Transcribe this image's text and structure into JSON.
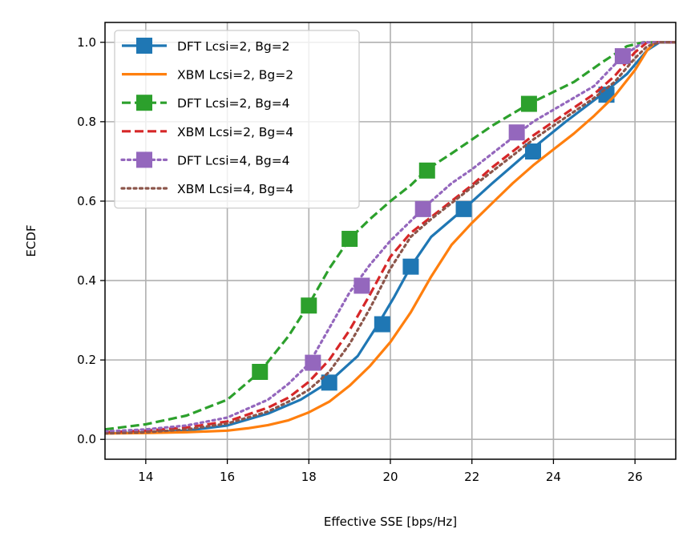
{
  "chart_data": {
    "type": "line",
    "title": "",
    "xlabel": "Effective SSE [bps/Hz]",
    "ylabel": "ECDF",
    "xlim": [
      13,
      27
    ],
    "ylim": [
      -0.05,
      1.05
    ],
    "xticks": [
      14,
      16,
      18,
      20,
      22,
      24,
      26
    ],
    "xtick_labels": [
      "14",
      "16",
      "18",
      "20",
      "22",
      "24",
      "26"
    ],
    "yticks": [
      0.0,
      0.2,
      0.4,
      0.6,
      0.8,
      1.0
    ],
    "ytick_labels": [
      "0.0",
      "0.2",
      "0.4",
      "0.6",
      "0.8",
      "1.0"
    ],
    "grid": true,
    "legend_position": "top-left",
    "series": [
      {
        "name": "DFT Lcsi=2, Bg=2",
        "color": "#1f77b4",
        "line": "solid",
        "marker": "square",
        "x": [
          13,
          14,
          15,
          16,
          17,
          17.8,
          18.5,
          19.2,
          19.7,
          20.1,
          20.5,
          21.0,
          21.8,
          22.5,
          23.4,
          24.3,
          25.2,
          25.8,
          26.3,
          26.6,
          27
        ],
        "y": [
          0.015,
          0.018,
          0.022,
          0.035,
          0.065,
          0.1,
          0.145,
          0.21,
          0.29,
          0.36,
          0.435,
          0.51,
          0.58,
          0.645,
          0.725,
          0.8,
          0.87,
          0.92,
          0.98,
          1.0,
          1.0
        ],
        "marker_x": [
          18.5,
          19.8,
          20.5,
          21.8,
          23.5,
          25.3
        ],
        "marker_y": [
          0.143,
          0.29,
          0.435,
          0.58,
          0.725,
          0.868
        ]
      },
      {
        "name": "XBM Lcsi=2, Bg=2",
        "color": "#ff7f0e",
        "line": "solid",
        "marker": "none",
        "x": [
          13,
          14,
          15,
          16,
          16.5,
          17,
          17.5,
          18,
          18.5,
          19,
          19.5,
          20,
          20.5,
          21,
          21.5,
          22,
          22.5,
          23,
          23.5,
          24,
          24.5,
          25,
          25.5,
          26,
          26.3,
          26.5,
          27
        ],
        "y": [
          0.015,
          0.016,
          0.018,
          0.022,
          0.028,
          0.036,
          0.048,
          0.068,
          0.095,
          0.135,
          0.185,
          0.245,
          0.32,
          0.41,
          0.49,
          0.545,
          0.595,
          0.645,
          0.69,
          0.73,
          0.77,
          0.815,
          0.865,
          0.93,
          0.98,
          1.0,
          1.0
        ]
      },
      {
        "name": "DFT Lcsi=2, Bg=4",
        "color": "#2ca02c",
        "line": "dashed",
        "marker": "square",
        "x": [
          13,
          14,
          15,
          16,
          16.8,
          17.5,
          18.0,
          18.5,
          19.0,
          19.5,
          20.0,
          20.5,
          20.9,
          21.5,
          22.5,
          23.4,
          24.5,
          25.2,
          25.8,
          26.2,
          27
        ],
        "y": [
          0.025,
          0.038,
          0.06,
          0.1,
          0.17,
          0.26,
          0.34,
          0.43,
          0.505,
          0.555,
          0.6,
          0.64,
          0.68,
          0.72,
          0.79,
          0.845,
          0.9,
          0.95,
          0.99,
          1.0,
          1.0
        ],
        "marker_x": [
          16.8,
          18.0,
          19.0,
          20.9,
          23.4
        ],
        "marker_y": [
          0.17,
          0.337,
          0.505,
          0.677,
          0.845
        ]
      },
      {
        "name": "XBM Lcsi=2, Bg=4",
        "color": "#d62728",
        "line": "dashed",
        "marker": "none",
        "x": [
          13,
          14,
          15,
          16,
          17,
          17.5,
          18,
          18.5,
          19,
          19.5,
          20,
          20.5,
          21,
          21.5,
          22,
          22.5,
          23,
          23.5,
          24,
          24.5,
          25,
          25.5,
          26,
          26.3,
          26.5,
          27
        ],
        "y": [
          0.018,
          0.022,
          0.03,
          0.045,
          0.08,
          0.105,
          0.145,
          0.2,
          0.275,
          0.365,
          0.46,
          0.52,
          0.56,
          0.6,
          0.64,
          0.685,
          0.725,
          0.765,
          0.8,
          0.835,
          0.87,
          0.915,
          0.975,
          1.0,
          1.0,
          1.0
        ]
      },
      {
        "name": "DFT Lcsi=4, Bg=4",
        "color": "#9467bd",
        "line": "dotted",
        "marker": "square",
        "x": [
          13,
          14,
          15,
          16,
          17,
          17.5,
          18.0,
          18.5,
          19.0,
          19.5,
          20.0,
          20.5,
          21.0,
          21.5,
          22.0,
          22.5,
          23.0,
          23.5,
          24.0,
          24.5,
          25.0,
          25.7,
          26.2,
          27
        ],
        "y": [
          0.02,
          0.025,
          0.035,
          0.055,
          0.1,
          0.14,
          0.19,
          0.28,
          0.37,
          0.44,
          0.5,
          0.55,
          0.6,
          0.645,
          0.68,
          0.72,
          0.76,
          0.8,
          0.83,
          0.86,
          0.89,
          0.965,
          1.0,
          1.0
        ],
        "marker_x": [
          18.1,
          19.3,
          20.8,
          23.1,
          25.7
        ],
        "marker_y": [
          0.193,
          0.387,
          0.58,
          0.773,
          0.965
        ]
      },
      {
        "name": "XBM Lcsi=4, Bg=4",
        "color": "#8c564b",
        "line": "dotted",
        "marker": "none",
        "x": [
          13,
          14,
          15,
          16,
          17,
          17.5,
          18,
          18.5,
          19,
          19.5,
          20,
          20.5,
          21,
          21.5,
          22,
          22.5,
          23,
          23.5,
          24,
          24.5,
          25,
          25.5,
          26,
          26.3,
          26.6,
          27
        ],
        "y": [
          0.015,
          0.018,
          0.025,
          0.04,
          0.07,
          0.095,
          0.125,
          0.17,
          0.24,
          0.33,
          0.43,
          0.51,
          0.555,
          0.595,
          0.635,
          0.675,
          0.715,
          0.755,
          0.79,
          0.825,
          0.86,
          0.9,
          0.96,
          0.99,
          1.0,
          1.0
        ]
      }
    ]
  }
}
